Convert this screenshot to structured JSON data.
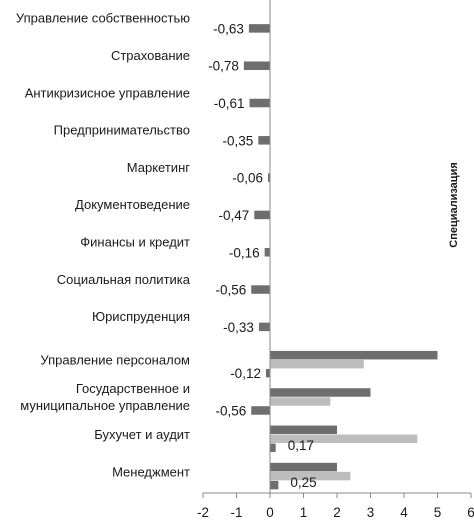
{
  "chart_data": {
    "type": "bar",
    "orientation": "horizontal",
    "title": "",
    "side_label": "Специализация",
    "categories": [
      [
        "Управление собственностью"
      ],
      [
        "Страхование"
      ],
      [
        "Антикризисное управление"
      ],
      [
        "Предпринимательство"
      ],
      [
        "Маркетинг"
      ],
      [
        "Документоведение"
      ],
      [
        "Финансы и кредит"
      ],
      [
        "Социальная политика"
      ],
      [
        "Юриспруденция"
      ],
      [
        "Управление персоналом"
      ],
      [
        "Государственное и",
        "муниципальное управление"
      ],
      [
        "Бухучет и аудит"
      ],
      [
        "Менеджмент"
      ]
    ],
    "series": [
      {
        "color": "#6e6e6e",
        "values": [
          -0.63,
          -0.78,
          -0.61,
          -0.35,
          -0.06,
          -0.47,
          -0.16,
          -0.56,
          -0.33,
          5.0,
          3.0,
          2.0,
          2.0
        ]
      },
      {
        "color": "#bdbdbd",
        "values": [
          null,
          null,
          null,
          null,
          null,
          null,
          null,
          null,
          null,
          2.8,
          1.8,
          4.4,
          2.4
        ]
      },
      {
        "color": "#6e6e6e",
        "values": [
          null,
          null,
          null,
          null,
          null,
          null,
          null,
          null,
          null,
          -0.12,
          -0.56,
          0.17,
          0.25
        ]
      }
    ],
    "data_labels": [
      "-0,63",
      "-0,78",
      "-0,61",
      "-0,35",
      "-0,06",
      "-0,47",
      "-0,16",
      "-0,56",
      "-0,33",
      "-0,12",
      "-0,56",
      "0,17",
      "0,25"
    ],
    "xlim": [
      -2,
      6
    ],
    "xticks": [
      "-2",
      "-1",
      "0",
      "1",
      "2",
      "3",
      "4",
      "5",
      "6"
    ],
    "grid": false,
    "legend": "none"
  }
}
